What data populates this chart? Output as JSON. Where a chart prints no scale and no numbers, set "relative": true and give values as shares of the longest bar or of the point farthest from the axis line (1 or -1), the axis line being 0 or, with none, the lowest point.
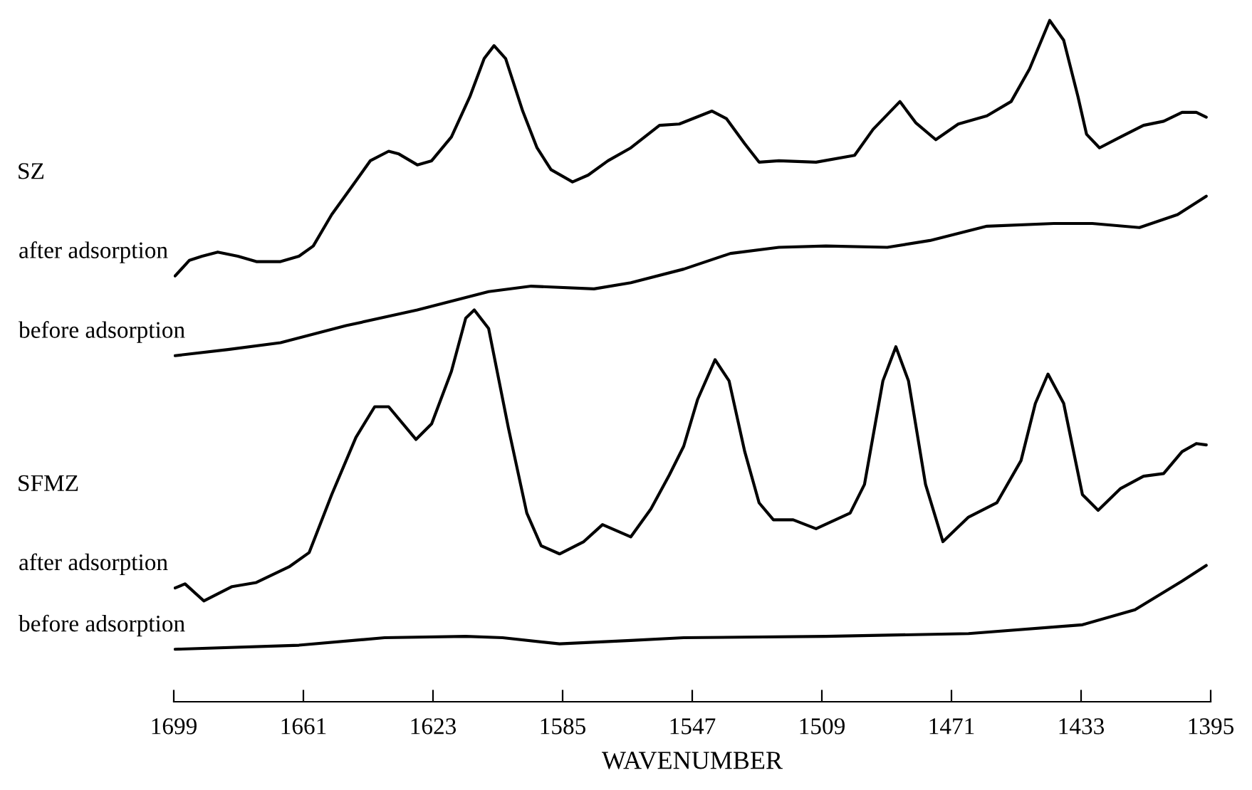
{
  "chart_data": {
    "type": "line",
    "relative": true,
    "xlabel": "WAVENUMBER",
    "xlim": [
      1699,
      1395
    ],
    "xticks": [
      1699,
      1661,
      1623,
      1585,
      1547,
      1509,
      1471,
      1433,
      1395
    ],
    "grid": false,
    "legend": false,
    "marker": "none",
    "line_style": "solid",
    "annotations": [
      "SZ",
      "SFMZ"
    ],
    "series": [
      {
        "name": "after adsorption",
        "color": "#000000",
        "x": [
          1698.6,
          1694.4,
          1690.7,
          1686.1,
          1680.2,
          1674.8,
          1667.7,
          1662.3,
          1658.1,
          1652.7,
          1646.8,
          1641.4,
          1636.0,
          1633.0,
          1627.6,
          1623.4,
          1617.6,
          1612.2,
          1608.0,
          1605.1,
          1601.7,
          1596.7,
          1592.5,
          1588.4,
          1582.1,
          1577.5,
          1571.7,
          1565.0,
          1556.6,
          1550.8,
          1541.2,
          1537.0,
          1531.6,
          1527.4,
          1521.6,
          1510.7,
          1499.4,
          1494.0,
          1486.1,
          1481.5,
          1475.6,
          1469.0,
          1460.6,
          1453.5,
          1448.1,
          1442.2,
          1438.1,
          1433.9,
          1431.4,
          1427.6,
          1421.4,
          1414.7,
          1408.8,
          1403.4,
          1399.2,
          1396.3
        ],
        "values": [
          0.625,
          0.648,
          0.654,
          0.66,
          0.654,
          0.646,
          0.646,
          0.654,
          0.669,
          0.715,
          0.756,
          0.794,
          0.808,
          0.804,
          0.788,
          0.794,
          0.829,
          0.888,
          0.944,
          0.963,
          0.944,
          0.867,
          0.813,
          0.781,
          0.763,
          0.773,
          0.794,
          0.813,
          0.846,
          0.848,
          0.867,
          0.856,
          0.819,
          0.792,
          0.794,
          0.792,
          0.802,
          0.84,
          0.881,
          0.85,
          0.825,
          0.848,
          0.86,
          0.881,
          0.929,
          1.0,
          0.971,
          0.888,
          0.833,
          0.813,
          0.829,
          0.846,
          0.852,
          0.865,
          0.865,
          0.858
        ]
      },
      {
        "name": "before adsorption",
        "color": "#000000",
        "x": [
          1698.6,
          1683.1,
          1667.7,
          1648.5,
          1627.6,
          1606.7,
          1594.2,
          1575.8,
          1565.0,
          1549.5,
          1535.8,
          1521.6,
          1507.8,
          1489.8,
          1477.3,
          1460.6,
          1441.0,
          1429.7,
          1415.9,
          1404.7,
          1396.3
        ],
        "values": [
          0.508,
          0.517,
          0.527,
          0.552,
          0.575,
          0.602,
          0.61,
          0.606,
          0.615,
          0.635,
          0.658,
          0.667,
          0.669,
          0.667,
          0.677,
          0.698,
          0.702,
          0.702,
          0.696,
          0.715,
          0.742
        ]
      },
      {
        "name": "after adsorption",
        "color": "#000000",
        "x": [
          1698.6,
          1695.7,
          1690.2,
          1681.9,
          1674.8,
          1665.2,
          1659.3,
          1652.7,
          1645.6,
          1640.1,
          1636.0,
          1628.0,
          1623.4,
          1617.6,
          1613.4,
          1610.9,
          1606.7,
          1600.9,
          1595.5,
          1591.3,
          1585.9,
          1578.8,
          1573.3,
          1565.0,
          1559.1,
          1553.7,
          1549.5,
          1545.4,
          1540.3,
          1536.2,
          1531.6,
          1527.4,
          1523.2,
          1517.4,
          1510.7,
          1500.7,
          1496.5,
          1491.1,
          1487.3,
          1483.6,
          1478.6,
          1473.5,
          1466.0,
          1457.7,
          1450.6,
          1446.4,
          1442.7,
          1438.1,
          1432.6,
          1428.0,
          1421.4,
          1414.7,
          1408.8,
          1403.4,
          1399.2,
          1396.3
        ],
        "values": [
          0.167,
          0.173,
          0.148,
          0.169,
          0.175,
          0.198,
          0.219,
          0.304,
          0.388,
          0.433,
          0.433,
          0.385,
          0.408,
          0.485,
          0.563,
          0.575,
          0.548,
          0.402,
          0.277,
          0.229,
          0.217,
          0.235,
          0.26,
          0.242,
          0.283,
          0.333,
          0.375,
          0.444,
          0.502,
          0.471,
          0.367,
          0.292,
          0.267,
          0.267,
          0.254,
          0.277,
          0.319,
          0.471,
          0.521,
          0.471,
          0.319,
          0.235,
          0.271,
          0.292,
          0.354,
          0.438,
          0.481,
          0.438,
          0.304,
          0.281,
          0.313,
          0.331,
          0.335,
          0.367,
          0.379,
          0.377
        ]
      },
      {
        "name": "before adsorption",
        "color": "#000000",
        "x": [
          1698.6,
          1662.3,
          1637.2,
          1613.4,
          1602.6,
          1585.9,
          1565.0,
          1549.5,
          1507.8,
          1466.0,
          1432.6,
          1417.2,
          1403.4,
          1396.3
        ],
        "values": [
          0.077,
          0.083,
          0.094,
          0.096,
          0.094,
          0.085,
          0.09,
          0.094,
          0.096,
          0.1,
          0.113,
          0.135,
          0.177,
          0.2
        ]
      }
    ]
  }
}
